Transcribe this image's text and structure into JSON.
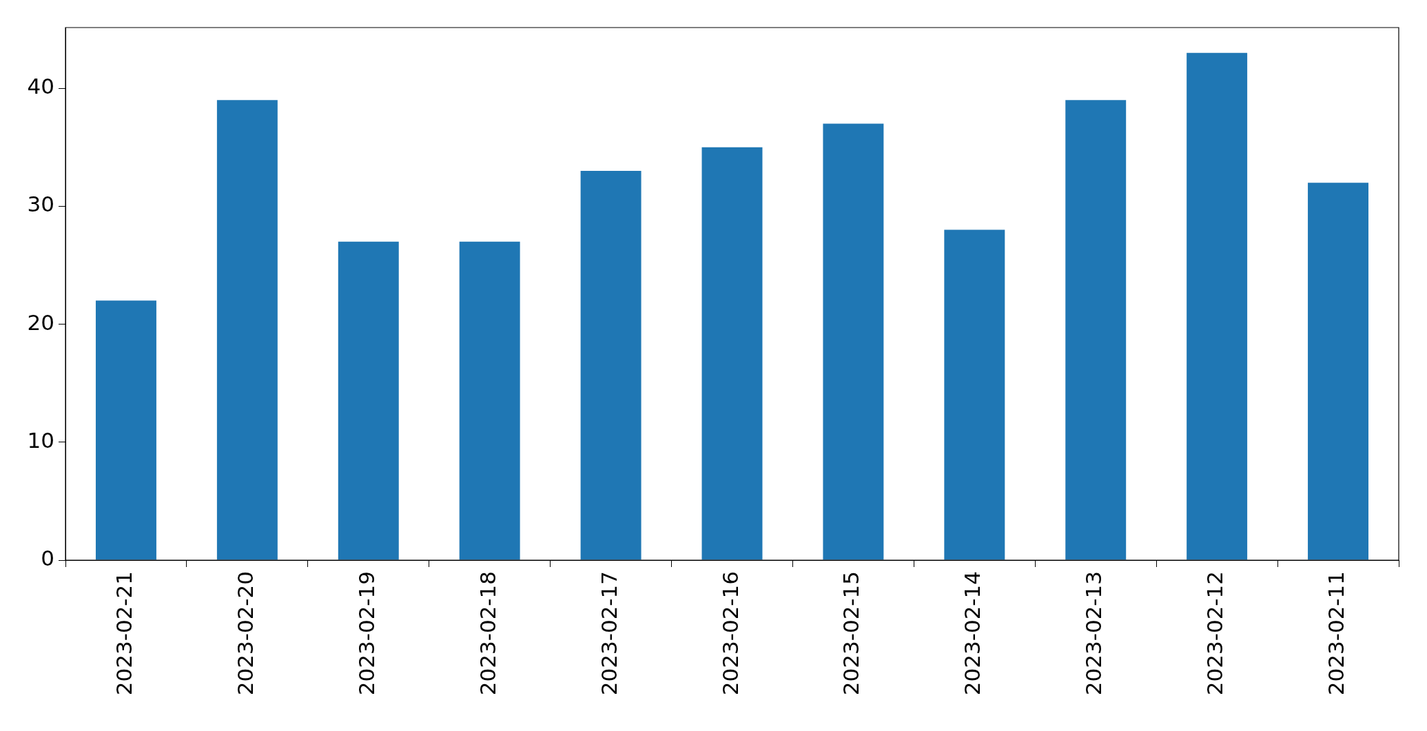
{
  "chart_data": {
    "type": "bar",
    "categories": [
      "2023-02-21",
      "2023-02-20",
      "2023-02-19",
      "2023-02-18",
      "2023-02-17",
      "2023-02-16",
      "2023-02-15",
      "2023-02-14",
      "2023-02-13",
      "2023-02-12",
      "2023-02-11"
    ],
    "values": [
      22,
      39,
      27,
      27,
      33,
      35,
      37,
      28,
      39,
      43,
      32
    ],
    "color": "#1f77b4",
    "ylim": [
      0,
      45.15
    ],
    "yticks": [
      0,
      10,
      20,
      30,
      40
    ],
    "grid": false
  }
}
